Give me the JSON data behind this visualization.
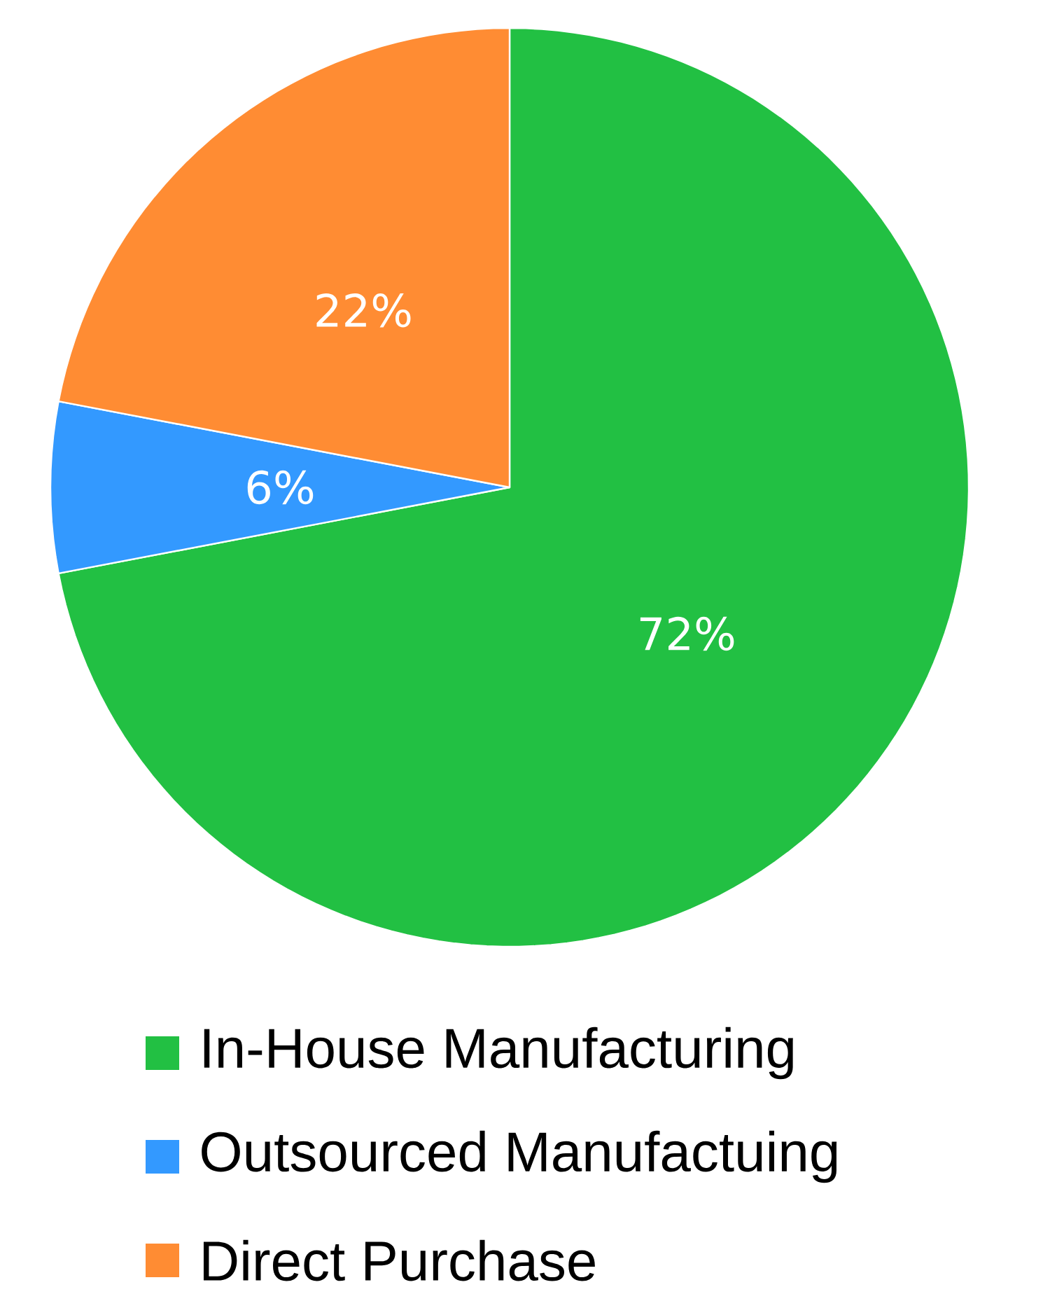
{
  "chart_data": {
    "type": "pie",
    "categories": [
      "In-House Manufacturing",
      "Outsourced Manufactuing",
      "Direct Purchase"
    ],
    "values": [
      72,
      6,
      22
    ],
    "colors": [
      "#22c043",
      "#3399ff",
      "#ff8c33"
    ],
    "value_labels": [
      "72%",
      "6%",
      "22%"
    ],
    "legend": "bottom"
  }
}
